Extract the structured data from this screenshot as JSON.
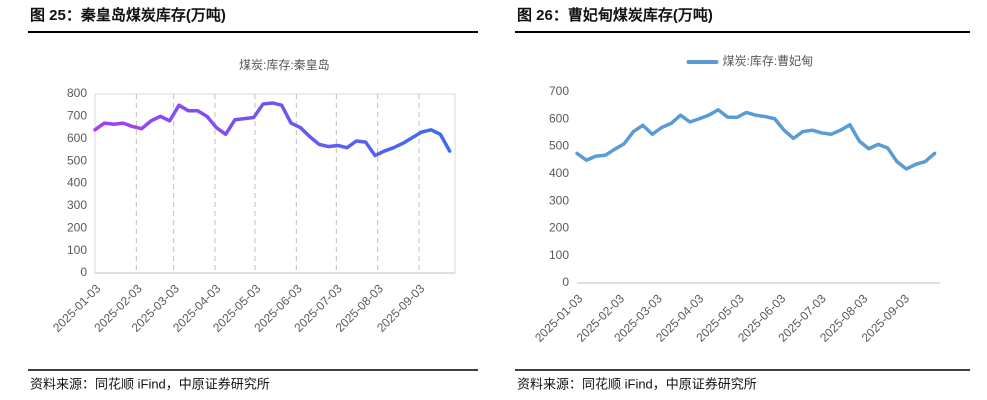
{
  "chart_data": [
    {
      "type": "line",
      "title": "图 25：秦皇岛煤炭库存(万吨)",
      "source": "资料来源：同花顺 iFind，中原证券研究所",
      "x": [
        "2025-01-03",
        "2025-01-10",
        "2025-01-17",
        "2025-01-24",
        "2025-01-31",
        "2025-02-07",
        "2025-02-14",
        "2025-02-21",
        "2025-02-28",
        "2025-03-07",
        "2025-03-14",
        "2025-03-21",
        "2025-03-28",
        "2025-04-04",
        "2025-04-11",
        "2025-04-18",
        "2025-04-25",
        "2025-05-02",
        "2025-05-09",
        "2025-05-16",
        "2025-05-23",
        "2025-05-30",
        "2025-06-06",
        "2025-06-13",
        "2025-06-20",
        "2025-06-27",
        "2025-07-04",
        "2025-07-11",
        "2025-07-18",
        "2025-07-25",
        "2025-08-01",
        "2025-08-08",
        "2025-08-15",
        "2025-08-22",
        "2025-08-29",
        "2025-09-05",
        "2025-09-12",
        "2025-09-19",
        "2025-09-26"
      ],
      "series": [
        {
          "name": "煤炭:库存:秦皇岛",
          "color": "#a23ff5",
          "color_end": "#3b6cf0",
          "values": [
            640,
            670,
            665,
            670,
            655,
            645,
            680,
            700,
            680,
            750,
            725,
            725,
            700,
            650,
            620,
            685,
            690,
            695,
            755,
            760,
            750,
            670,
            650,
            610,
            575,
            565,
            570,
            560,
            590,
            585,
            525,
            545,
            560,
            580,
            605,
            630,
            640,
            620,
            545
          ]
        }
      ],
      "xlim": [
        "2025-01-03",
        "2025-09-30"
      ],
      "xticks": [
        "2025-01-03",
        "2025-02-03",
        "2025-03-03",
        "2025-04-03",
        "2025-05-03",
        "2025-06-03",
        "2025-07-03",
        "2025-08-03",
        "2025-09-03"
      ],
      "ylim": [
        0,
        800
      ],
      "yticks": [
        0,
        100,
        200,
        300,
        400,
        500,
        600,
        700,
        800
      ],
      "grid": true,
      "frame": true,
      "legend": "top"
    },
    {
      "type": "line",
      "title": "图 26：曹妃甸煤炭库存(万吨)",
      "source": "资料来源：同花顺 iFind，中原证券研究所",
      "x": [
        "2025-01-03",
        "2025-01-10",
        "2025-01-17",
        "2025-01-24",
        "2025-01-31",
        "2025-02-07",
        "2025-02-14",
        "2025-02-21",
        "2025-02-28",
        "2025-03-07",
        "2025-03-14",
        "2025-03-21",
        "2025-03-28",
        "2025-04-04",
        "2025-04-11",
        "2025-04-18",
        "2025-04-25",
        "2025-05-02",
        "2025-05-09",
        "2025-05-16",
        "2025-05-23",
        "2025-05-30",
        "2025-06-06",
        "2025-06-13",
        "2025-06-20",
        "2025-06-27",
        "2025-07-04",
        "2025-07-11",
        "2025-07-18",
        "2025-07-25",
        "2025-08-01",
        "2025-08-08",
        "2025-08-15",
        "2025-08-22",
        "2025-08-29",
        "2025-09-05",
        "2025-09-12",
        "2025-09-19",
        "2025-09-26"
      ],
      "series": [
        {
          "name": "煤炭:库存:曹妃甸",
          "color": "#5b9bd5",
          "values": [
            475,
            450,
            465,
            468,
            490,
            510,
            555,
            578,
            545,
            570,
            585,
            615,
            590,
            602,
            615,
            635,
            608,
            607,
            625,
            615,
            610,
            602,
            560,
            530,
            555,
            560,
            550,
            545,
            560,
            580,
            520,
            492,
            508,
            495,
            445,
            418,
            435,
            445,
            475
          ]
        }
      ],
      "xlim": [
        "2025-01-03",
        "2025-09-30"
      ],
      "xticks": [
        "2025-01-03",
        "2025-02-03",
        "2025-03-03",
        "2025-04-03",
        "2025-05-03",
        "2025-06-03",
        "2025-07-03",
        "2025-08-03",
        "2025-09-03"
      ],
      "ylim": [
        0,
        700
      ],
      "yticks": [
        0,
        100,
        200,
        300,
        400,
        500,
        600,
        700
      ],
      "grid": false,
      "frame": false,
      "legend": "top"
    }
  ]
}
